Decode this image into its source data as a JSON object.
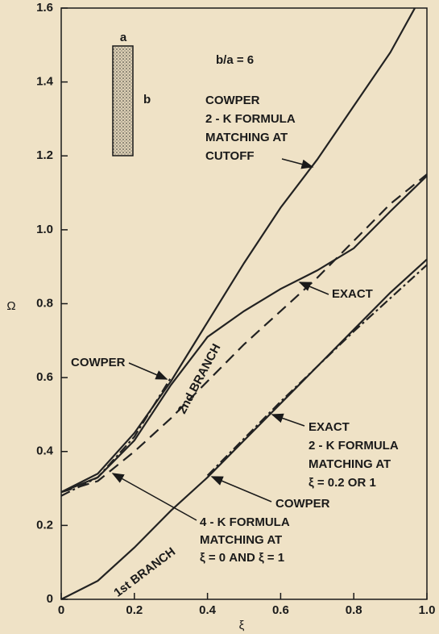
{
  "chart_data": {
    "type": "line",
    "xlabel": "ξ",
    "ylabel": "Ω",
    "xlim": [
      0,
      1
    ],
    "ylim": [
      0,
      1.6
    ],
    "xticks": [
      0,
      0.2,
      0.4,
      0.6,
      0.8,
      {
        "value": 1,
        "label": "1.0"
      }
    ],
    "yticks": [
      0,
      0.2,
      0.4,
      0.6,
      0.8,
      {
        "value": 1,
        "label": "1.0"
      },
      1.2,
      1.4,
      1.6
    ],
    "series": [
      {
        "color": "#222222",
        "style": "solid",
        "x": [
          0,
          0.1,
          0.2,
          0.3,
          0.4,
          0.5,
          0.6,
          0.7,
          0.8,
          0.9,
          1.0
        ],
        "values": [
          0,
          0.05,
          0.14,
          0.24,
          0.33,
          0.43,
          0.53,
          0.63,
          0.73,
          0.83,
          0.92
        ]
      },
      {
        "color": "#222222",
        "style": "dashdot",
        "x": [
          0.4,
          0.5,
          0.6,
          0.7,
          0.8,
          0.9,
          1.0
        ],
        "values": [
          0.335,
          0.435,
          0.535,
          0.63,
          0.725,
          0.815,
          0.905
        ]
      },
      {
        "color": "#222222",
        "style": "solid",
        "x": [
          0,
          0.1,
          0.2,
          0.3,
          0.4,
          0.5,
          0.6,
          0.7,
          0.8,
          0.9,
          1.0
        ],
        "values": [
          0.29,
          0.33,
          0.43,
          0.58,
          0.71,
          0.78,
          0.84,
          0.89,
          0.95,
          1.05,
          1.146
        ]
      },
      {
        "color": "#222222",
        "style": "solid",
        "x": [
          0,
          0.1,
          0.2,
          0.3,
          0.4,
          0.5,
          0.6,
          0.7,
          0.8,
          0.9,
          0.967
        ],
        "values": [
          0.29,
          0.34,
          0.45,
          0.59,
          0.75,
          0.91,
          1.06,
          1.19,
          1.335,
          1.48,
          1.6
        ]
      },
      {
        "color": "#222222",
        "style": "dashdot",
        "x": [
          0,
          0.1,
          0.2,
          0.3
        ],
        "values": [
          0.28,
          0.33,
          0.44,
          0.6
        ]
      },
      {
        "color": "#222222",
        "style": "dash",
        "x": [
          0,
          0.1,
          0.2,
          0.3,
          0.4,
          0.5,
          0.6,
          0.7,
          0.8,
          0.9,
          1.0
        ],
        "values": [
          0.29,
          0.32,
          0.4,
          0.49,
          0.59,
          0.69,
          0.78,
          0.87,
          0.97,
          1.07,
          1.15
        ]
      }
    ],
    "annotations": [
      [
        "COWPER",
        "2 - K FORMULA",
        "MATCHING AT",
        "CUTOFF"
      ],
      [
        "EXACT"
      ],
      [
        "COWPER"
      ],
      [
        "2nd BRANCH"
      ],
      [
        "EXACT",
        "2 - K FORMULA",
        "MATCHING AT",
        "ξ = 0.2 OR 1"
      ],
      [
        "COWPER"
      ],
      [
        "4 - K FORMULA",
        "MATCHING AT",
        "ξ = 0 AND ξ = 1"
      ],
      [
        "1st BRANCH"
      ],
      [
        "b/a  =  6"
      ],
      [
        "a"
      ],
      [
        "b"
      ]
    ]
  }
}
